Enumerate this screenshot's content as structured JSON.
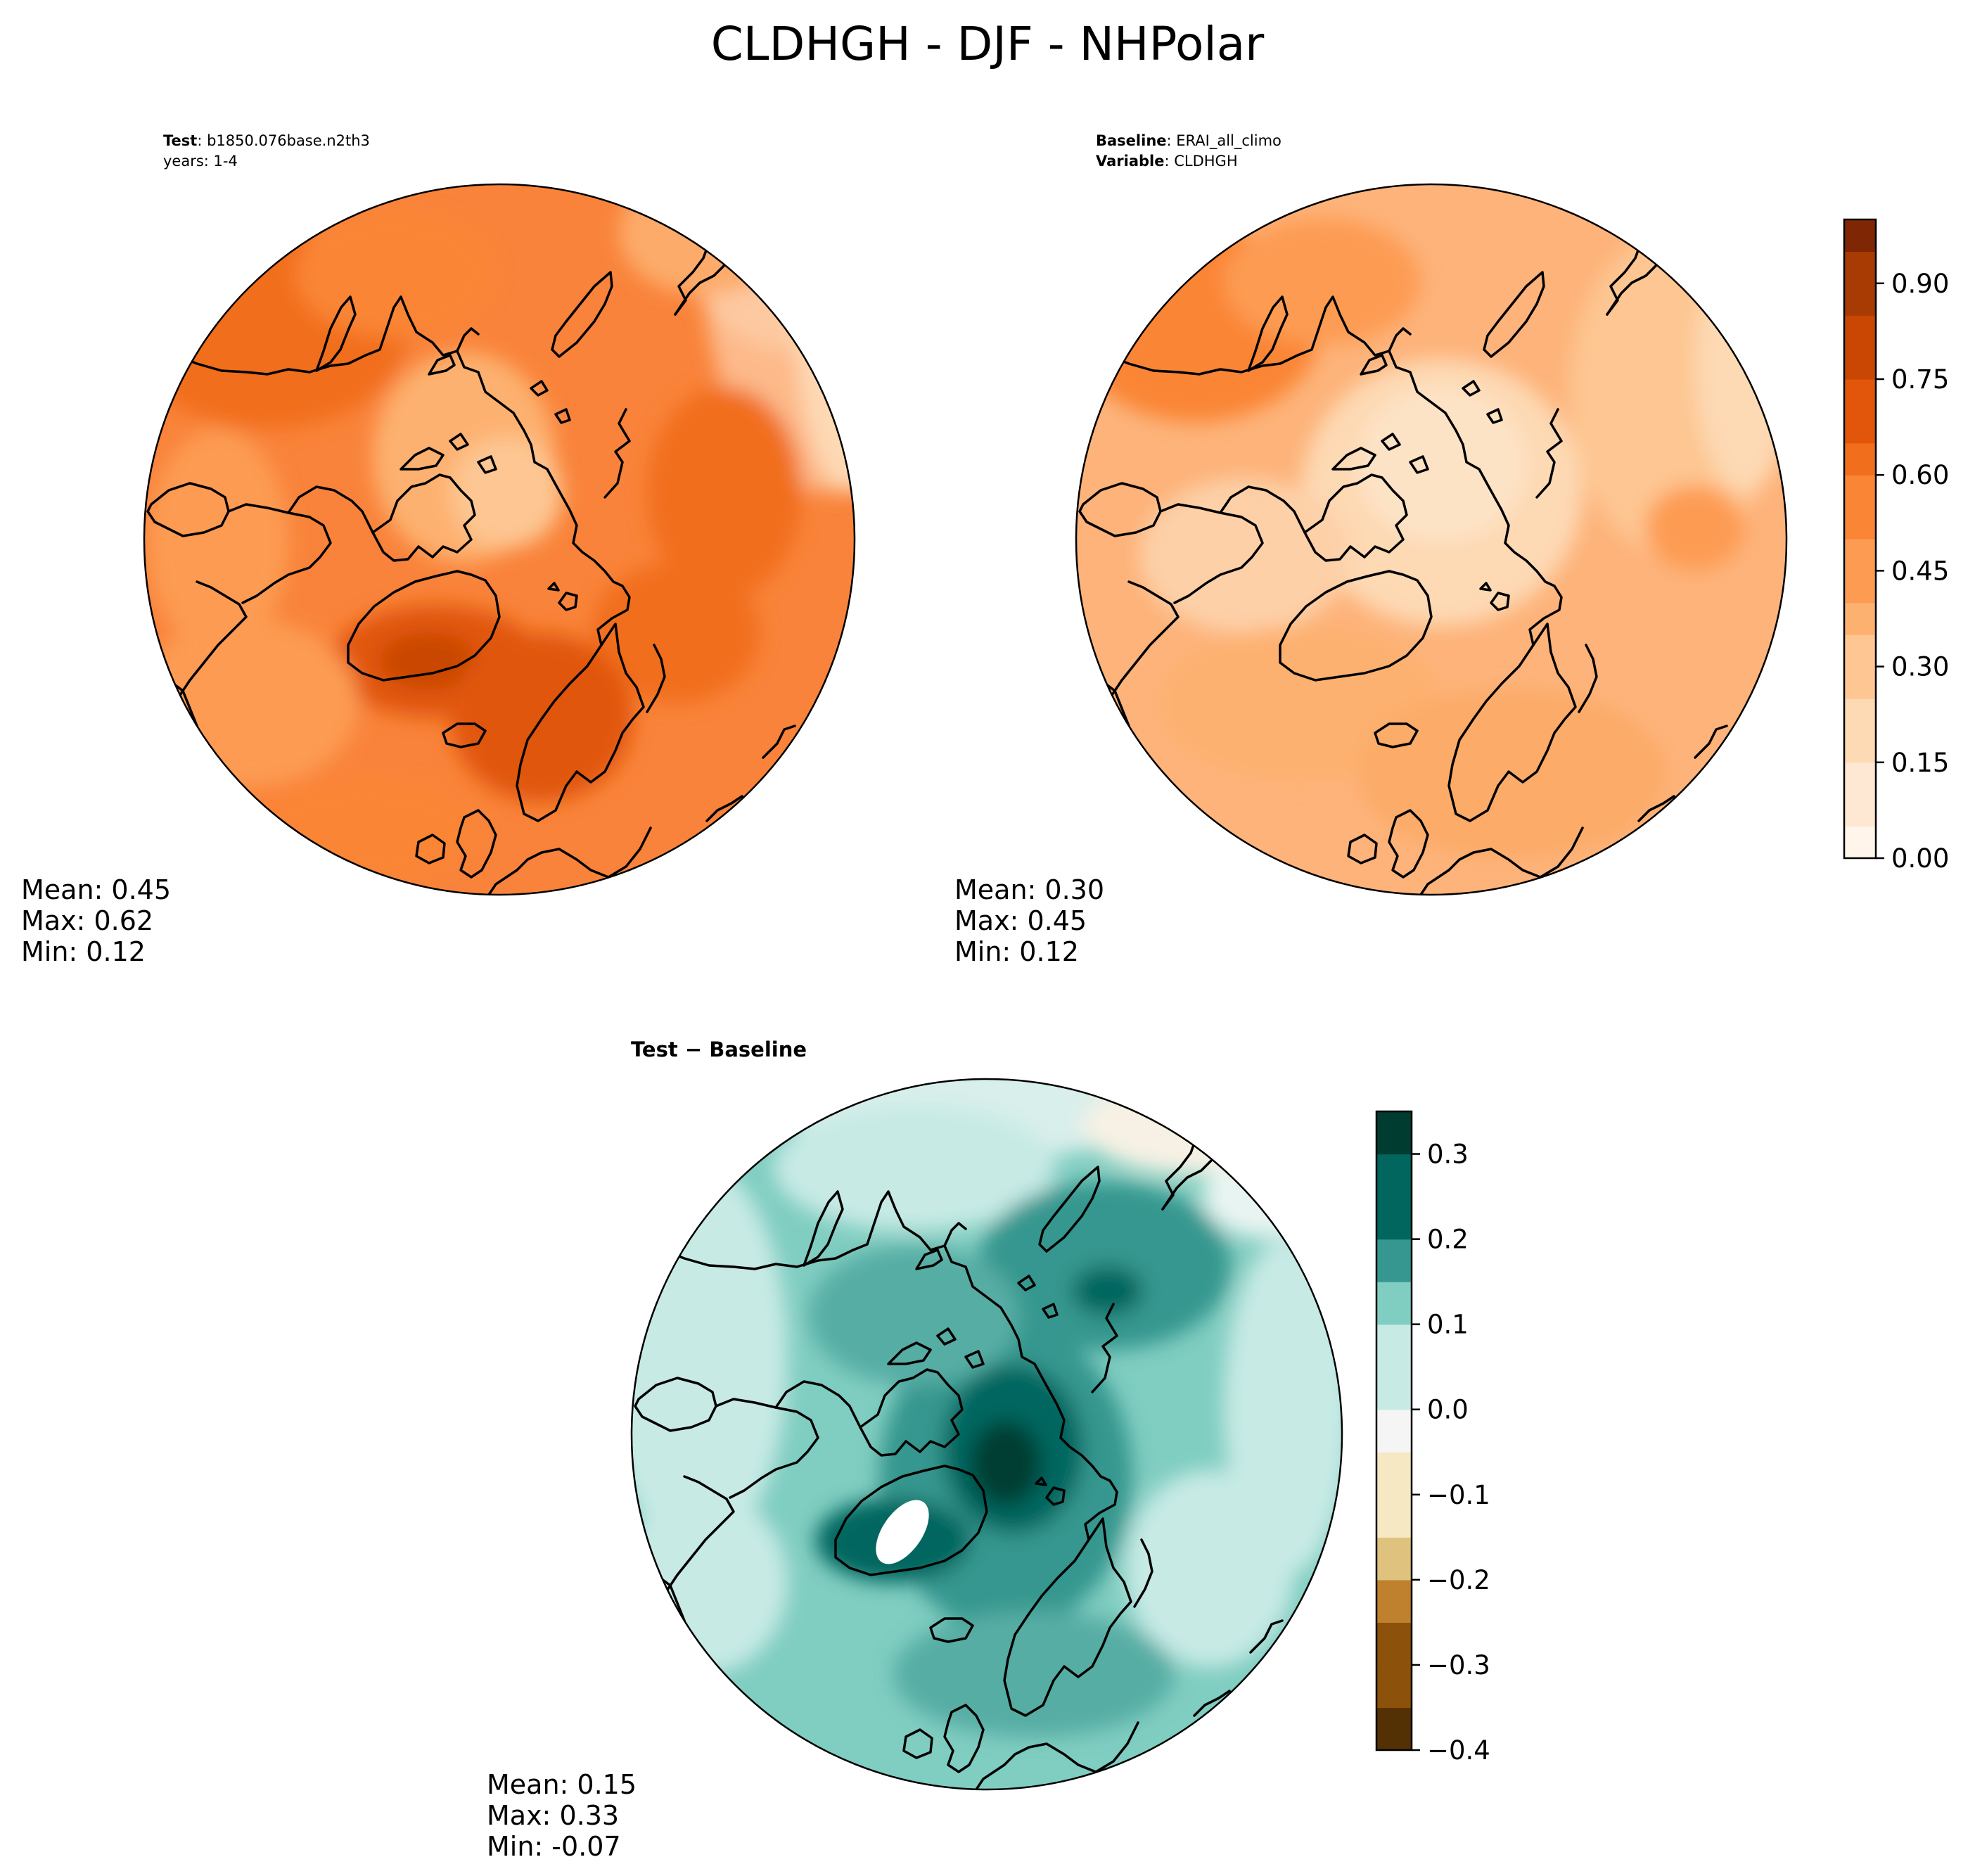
{
  "figure": {
    "title": "CLDHGH - DJF - NHPolar"
  },
  "panels": {
    "test": {
      "label_bold": "Test",
      "label_value": ": b1850.076base.n2th3",
      "line2": "years: 1-4",
      "mean": "Mean:  0.45",
      "max": "Max:  0.62",
      "min": "Min:  0.12"
    },
    "baseline": {
      "label_bold": "Baseline",
      "label_value": ": ERAI_all_climo",
      "line2_bold": "Variable",
      "line2_value": ": CLDHGH",
      "mean": "Mean:  0.30",
      "max": "Max:  0.45",
      "min": "Min:  0.12"
    },
    "diff": {
      "label": "Test − Baseline",
      "mean": "Mean:  0.15",
      "max": "Max:  0.33",
      "min": "Min: -0.07"
    }
  },
  "colors": {
    "oranges": [
      "#fff5eb",
      "#fee8d3",
      "#fdd9b4",
      "#fdc692",
      "#fdb170",
      "#fd9b52",
      "#fa8535",
      "#f16e1c",
      "#e1560b",
      "#c94702",
      "#a83a03",
      "#7f2704"
    ],
    "brbg": [
      "#003c30",
      "#01665e",
      "#35978f",
      "#80cdc1",
      "#c7eae5",
      "#f5f5f5",
      "#f6e8c3",
      "#dfc27d",
      "#bf812d",
      "#8c510a",
      "#543005"
    ]
  },
  "chart_data": [
    {
      "type": "heatmap",
      "name": "test",
      "projection": "north polar stereographic",
      "variable": "CLDHGH",
      "season": "DJF",
      "stats": {
        "mean": 0.45,
        "max": 0.62,
        "min": 0.12
      },
      "colorbar": "shared with baseline"
    },
    {
      "type": "heatmap",
      "name": "baseline",
      "projection": "north polar stereographic",
      "variable": "CLDHGH",
      "season": "DJF",
      "stats": {
        "mean": 0.3,
        "max": 0.45,
        "min": 0.12
      },
      "colorbar": {
        "range": [
          0.0,
          1.0
        ],
        "levels": [
          0.0,
          0.05,
          0.1,
          0.15,
          0.2,
          0.25,
          0.3,
          0.35,
          0.4,
          0.45,
          0.5,
          0.55,
          0.6,
          0.65,
          0.7,
          0.75,
          0.8,
          0.85,
          0.9,
          0.95,
          1.0
        ],
        "ticks": [
          0.0,
          0.15,
          0.3,
          0.45,
          0.6,
          0.75,
          0.9
        ],
        "tick_labels": [
          "0.00",
          "0.15",
          "0.30",
          "0.45",
          "0.60",
          "0.75",
          "0.90"
        ]
      }
    },
    {
      "type": "heatmap",
      "name": "difference",
      "projection": "north polar stereographic",
      "title": "Test − Baseline",
      "stats": {
        "mean": 0.15,
        "max": 0.33,
        "min": -0.07
      },
      "colorbar": {
        "range": [
          -0.4,
          0.35
        ],
        "levels": [
          -0.4,
          -0.35,
          -0.3,
          -0.25,
          -0.2,
          -0.15,
          -0.1,
          -0.05,
          0.0,
          0.05,
          0.1,
          0.15,
          0.2,
          0.25,
          0.3,
          0.35
        ],
        "ticks": [
          -0.4,
          -0.3,
          -0.2,
          -0.1,
          0.0,
          0.1,
          0.2,
          0.3
        ],
        "tick_labels": [
          "−0.4",
          "−0.3",
          "−0.2",
          "−0.1",
          "0.0",
          "0.1",
          "0.2",
          "0.3"
        ]
      }
    }
  ]
}
